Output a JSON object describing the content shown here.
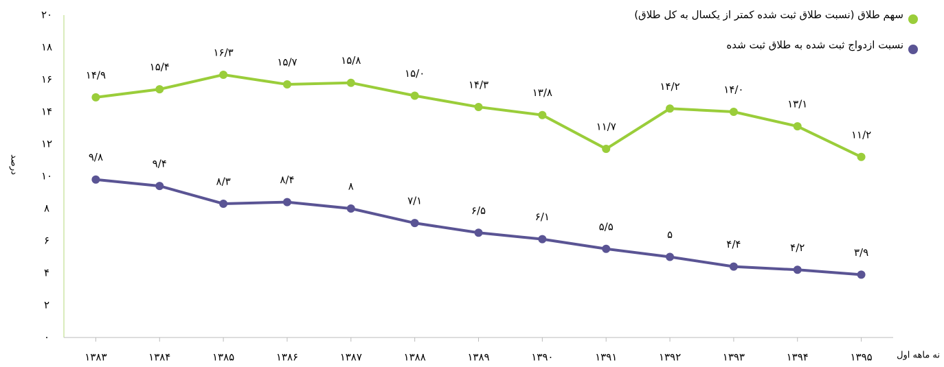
{
  "chart_data": {
    "type": "line",
    "categories": [
      "۱۳۸۳",
      "۱۳۸۴",
      "۱۳۸۵",
      "۱۳۸۶",
      "۱۳۸۷",
      "۱۳۸۸",
      "۱۳۸۹",
      "۱۳۹۰",
      "۱۳۹۱",
      "۱۳۹۲",
      "۱۳۹۳",
      "۱۳۹۴",
      "۱۳۹۵"
    ],
    "x_annotation": "نه ماهه اول",
    "ylabel": "درصد",
    "ylim": [
      0,
      20
    ],
    "yticks": [
      {
        "value": 0,
        "label": "۰"
      },
      {
        "value": 2,
        "label": "۲"
      },
      {
        "value": 4,
        "label": "۴"
      },
      {
        "value": 6,
        "label": "۶"
      },
      {
        "value": 8,
        "label": "۸"
      },
      {
        "value": 10,
        "label": "۱۰"
      },
      {
        "value": 12,
        "label": "۱۲"
      },
      {
        "value": 14,
        "label": "۱۴"
      },
      {
        "value": 16,
        "label": "۱۶"
      },
      {
        "value": 18,
        "label": "۱۸"
      },
      {
        "value": 20,
        "label": "۲۰"
      }
    ],
    "series": [
      {
        "name": "سهم طلاق (نسبت طلاق ثبت شده کمتر از یکسال به کل طلاق)",
        "color": "#9acd3a",
        "values": [
          14.9,
          15.4,
          16.3,
          15.7,
          15.8,
          15.0,
          14.3,
          13.8,
          11.7,
          14.2,
          14.0,
          13.1,
          11.2
        ],
        "value_labels": [
          "۱۴/۹",
          "۱۵/۴",
          "۱۶/۳",
          "۱۵/۷",
          "۱۵/۸",
          "۱۵/۰",
          "۱۴/۳",
          "۱۳/۸",
          "۱۱/۷",
          "۱۴/۲",
          "۱۴/۰",
          "۱۳/۱",
          "۱۱/۲"
        ]
      },
      {
        "name": "نسبت ازدواج ثبت شده به طلاق ثبت شده",
        "color": "#5a5494",
        "values": [
          9.8,
          9.4,
          8.3,
          8.4,
          8,
          7.1,
          6.5,
          6.1,
          5.5,
          5,
          4.4,
          4.2,
          3.9
        ],
        "value_labels": [
          "۹/۸",
          "۹/۴",
          "۸/۳",
          "۸/۴",
          "۸",
          "۷/۱",
          "۶/۵",
          "۶/۱",
          "۵/۵",
          "۵",
          "۴/۴",
          "۴/۲",
          "۳/۹"
        ]
      }
    ]
  }
}
